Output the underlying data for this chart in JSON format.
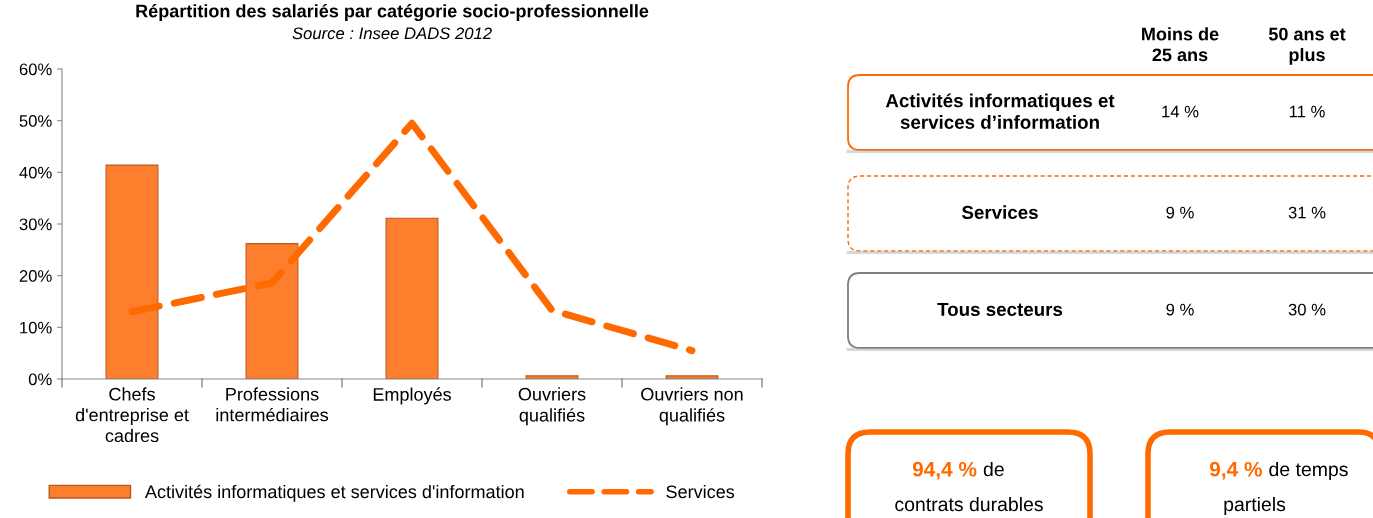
{
  "chart_data": [
    {
      "type": "bar",
      "title": "Répartition des salariés par catégorie socio-professionnelle",
      "subtitle": "Source : Insee DADS 2012",
      "categories": [
        "Chefs d'entreprise et cadres",
        "Professions intermédiaires",
        "Employés",
        "Ouvriers qualifiés",
        "Ouvriers non qualifiés"
      ],
      "series": [
        {
          "name": "Activités informatiques et services d'information",
          "color": "#fd7e2d",
          "values": [
            41.4,
            26.2,
            31.1,
            0.6,
            0.6
          ]
        },
        {
          "name": "Services",
          "type": "line",
          "color": "#ff6a00",
          "line_style": "dashed",
          "values": [
            13,
            18.6,
            49.5,
            13.3,
            5.5
          ]
        }
      ],
      "ylim": [
        0,
        60
      ],
      "yticks": [
        {
          "value": 0,
          "label": "0%"
        },
        {
          "value": 10,
          "label": "10%"
        },
        {
          "value": 20,
          "label": "20%"
        },
        {
          "value": 30,
          "label": "30%"
        },
        {
          "value": 40,
          "label": "40%"
        },
        {
          "value": 50,
          "label": "50%"
        },
        {
          "value": 60,
          "label": "60%"
        }
      ],
      "grid": false,
      "legend": "bottom",
      "marker": "none"
    },
    {
      "type": "other",
      "categories": [
        "Moins de\n25 ans",
        "50 ans et\nplus"
      ],
      "y_categories": [
        "Activités informatiques et\nservices d’information",
        "Services",
        "Tous secteurs"
      ],
      "cell_labels": [
        [
          "14 %",
          "11 %"
        ],
        [
          "9 %",
          "31 %"
        ],
        [
          "9 %",
          "30 %"
        ]
      ],
      "colors": [
        "#ff6a00",
        "#ff6a00",
        "#7f7f7f"
      ]
    },
    {
      "type": "other",
      "color": "#ff6a00",
      "annotations": [
        "94,4 %",
        "de\ncontrats durables",
        "9,4 %",
        "de temps\npartiels"
      ]
    }
  ]
}
